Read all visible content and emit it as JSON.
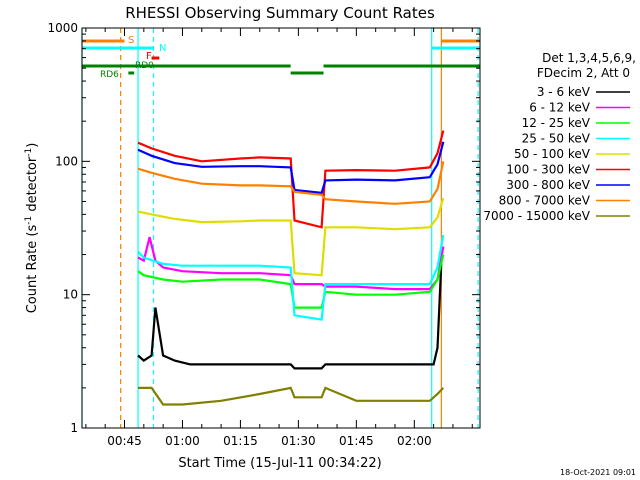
{
  "chart_data": {
    "type": "line",
    "title": "RHESSI Observing Summary Count Rates",
    "xlabel": "Start Time (15-Jul-11 00:34:22)",
    "ylabel": "Count Rate (s",
    "ylabel_sup1": "-1",
    "ylabel_mid": " detector",
    "ylabel_sup2": "-1",
    "ylabel_end": ")",
    "footer": "18-Oct-2021 09:01",
    "xlim_min": [
      34,
      137
    ],
    "ylim": [
      1,
      1000
    ],
    "yscale": "log",
    "ytick_values": [
      1,
      10,
      100,
      1000
    ],
    "ytick_labels": [
      "1",
      "10",
      "100",
      "1000"
    ],
    "xtick_values": [
      45,
      60,
      75,
      90,
      105,
      120
    ],
    "xtick_labels": [
      "00:45",
      "01:00",
      "01:15",
      "01:30",
      "01:45",
      "02:00"
    ],
    "legend": {
      "header1": "Det 1,3,4,5,6,9,",
      "header2": "FDecim 2, Att 0",
      "entries": [
        {
          "label": "3 - 6 keV",
          "color": "#000000"
        },
        {
          "label": "6 - 12 keV",
          "color": "#ff00ff"
        },
        {
          "label": "12 - 25 keV",
          "color": "#00ff00"
        },
        {
          "label": "25 - 50 keV",
          "color": "#00ffff"
        },
        {
          "label": "50 - 100 keV",
          "color": "#dddd00"
        },
        {
          "label": "100 - 300 keV",
          "color": "#ff0000"
        },
        {
          "label": "300 - 800 keV",
          "color": "#0000ff"
        },
        {
          "label": "800 - 7000 keV",
          "color": "#ff8000"
        },
        {
          "label": "7000 - 15000 keV",
          "color": "#808000"
        }
      ]
    },
    "flags": {
      "saa": {
        "label": "S",
        "color": "#ff8000",
        "segments": [
          [
            34,
            45
          ],
          [
            127,
            137
          ]
        ]
      },
      "night": {
        "label": "N",
        "color": "#00ffff",
        "segments": [
          [
            34,
            52.5
          ],
          [
            124.5,
            137
          ]
        ]
      },
      "flare": {
        "label": "F",
        "color": "#ff0000",
        "segments": [
          [
            52,
            54
          ]
        ]
      },
      "rd0": {
        "label": "RD0",
        "color": "#008000",
        "segments": [
          [
            34,
            88
          ],
          [
            88,
            96.5
          ],
          [
            96.5,
            137
          ]
        ]
      },
      "rd6": {
        "label": "RD6",
        "color": "#008000",
        "segments": [
          [
            46,
            47.5
          ]
        ]
      }
    },
    "vlines": [
      {
        "x": 34,
        "color": "#00ffff",
        "style": "solid"
      },
      {
        "x": 44,
        "color": "#ff8000",
        "style": "dashed"
      },
      {
        "x": 48.5,
        "color": "#00ffff",
        "style": "solid"
      },
      {
        "x": 52.5,
        "color": "#00ffff",
        "style": "dashed"
      },
      {
        "x": 124.5,
        "color": "#00ffff",
        "style": "solid"
      },
      {
        "x": 127,
        "color": "#ff8000",
        "style": "solid"
      },
      {
        "x": 136.5,
        "color": "#00ffff",
        "style": "dashed"
      }
    ],
    "series": [
      {
        "name": "3 - 6 keV",
        "color": "#000000",
        "x": [
          48.5,
          50,
          52,
          53,
          55,
          58,
          62,
          70,
          80,
          88,
          89,
          96,
          97,
          105,
          115,
          124,
          125,
          126,
          127
        ],
        "y": [
          3.5,
          3.2,
          3.5,
          8,
          3.5,
          3.2,
          3,
          3,
          3,
          3,
          2.8,
          2.8,
          3,
          3,
          3,
          3,
          3,
          4,
          18
        ]
      },
      {
        "name": "6 - 12 keV",
        "color": "#ff00ff",
        "x": [
          48.5,
          50,
          51.5,
          53,
          55,
          60,
          70,
          80,
          88,
          89,
          96,
          97,
          105,
          115,
          124,
          126,
          127.5
        ],
        "y": [
          19,
          18,
          27,
          18,
          16,
          15,
          14.5,
          14.5,
          14,
          12,
          12,
          11.5,
          11.5,
          11,
          11,
          13,
          23
        ]
      },
      {
        "name": "12 - 25 keV",
        "color": "#00ff00",
        "x": [
          48.5,
          50,
          55,
          60,
          70,
          80,
          88,
          89,
          96,
          97,
          105,
          115,
          124,
          126,
          127.5
        ],
        "y": [
          15,
          14,
          13,
          12.5,
          13,
          13,
          12,
          8,
          8,
          10.5,
          10,
          10,
          10.5,
          13,
          20
        ]
      },
      {
        "name": "25 - 50 keV",
        "color": "#00ffff",
        "x": [
          48.5,
          50,
          55,
          60,
          70,
          80,
          88,
          89,
          96,
          97,
          105,
          115,
          124,
          126,
          127.5
        ],
        "y": [
          21,
          19,
          17,
          16.5,
          16.5,
          16.5,
          16,
          7,
          6.5,
          12,
          12,
          12,
          12,
          16,
          28
        ]
      },
      {
        "name": "50 - 100 keV",
        "color": "#dddd00",
        "x": [
          48.5,
          52,
          58,
          65,
          75,
          80,
          88,
          89,
          96,
          97,
          105,
          115,
          124,
          126,
          127.5
        ],
        "y": [
          42,
          40,
          37,
          35,
          35.5,
          36,
          36,
          14.5,
          14,
          32,
          32,
          31,
          32,
          38,
          53
        ]
      },
      {
        "name": "100 - 300 keV",
        "color": "#ff0000",
        "x": [
          48.5,
          52,
          58,
          65,
          75,
          80,
          88,
          89,
          96,
          97,
          105,
          115,
          124,
          126,
          127.5
        ],
        "y": [
          138,
          125,
          110,
          100,
          105,
          107,
          105,
          36,
          32,
          85,
          86,
          85,
          90,
          115,
          170
        ]
      },
      {
        "name": "300 - 800 keV",
        "color": "#0000ff",
        "x": [
          48.5,
          52,
          58,
          65,
          75,
          80,
          88,
          89,
          96,
          97,
          105,
          115,
          124,
          126,
          127.5
        ],
        "y": [
          122,
          110,
          97,
          91,
          92,
          92,
          90,
          61,
          58,
          72,
          73,
          72,
          76,
          95,
          140
        ]
      },
      {
        "name": "800 - 7000 keV",
        "color": "#ff8000",
        "x": [
          48.5,
          52,
          58,
          65,
          75,
          80,
          88,
          89,
          96,
          97,
          105,
          115,
          124,
          126,
          127.5
        ],
        "y": [
          88,
          82,
          74,
          68,
          66,
          66,
          65,
          59,
          56,
          52,
          50,
          48,
          50,
          62,
          100
        ]
      },
      {
        "name": "7000 - 15000 keV",
        "color": "#808000",
        "x": [
          48.5,
          52,
          55,
          60,
          70,
          80,
          88,
          89,
          96,
          97,
          105,
          115,
          124,
          126,
          127.5
        ],
        "y": [
          2,
          2,
          1.5,
          1.5,
          1.6,
          1.8,
          2,
          1.7,
          1.7,
          2,
          1.6,
          1.6,
          1.6,
          1.8,
          2
        ]
      }
    ]
  }
}
